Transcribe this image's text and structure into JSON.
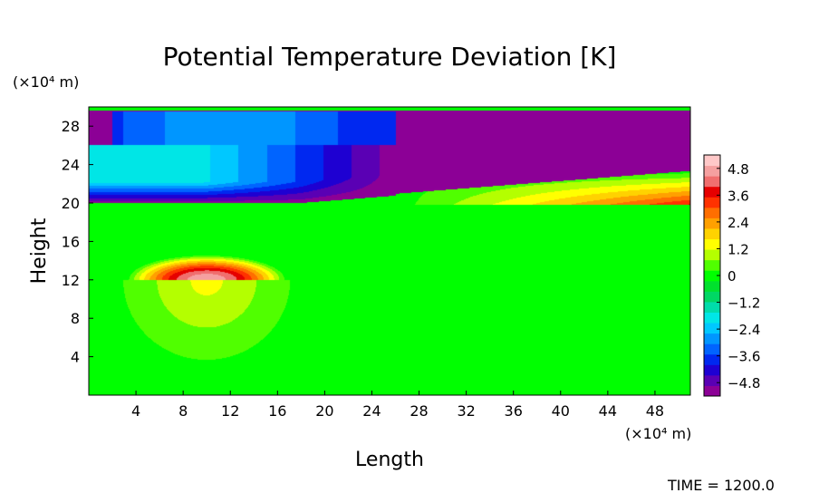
{
  "chart_data": {
    "type": "heatmap",
    "title": "Potential Temperature Deviation [K]",
    "xlabel": "Length",
    "ylabel": "Height",
    "x_unit": "(×10⁴ m)",
    "y_unit": "(×10⁴ m)",
    "xlim": [
      0,
      51
    ],
    "ylim": [
      0,
      30
    ],
    "x_ticks": [
      4,
      8,
      12,
      16,
      20,
      24,
      28,
      32,
      36,
      40,
      44,
      48
    ],
    "y_ticks": [
      4,
      8,
      12,
      16,
      20,
      24,
      28
    ],
    "colorbar": {
      "min": -5.4,
      "max": 5.4,
      "tick_values": [
        4.8,
        3.6,
        2.4,
        1.2,
        0,
        -1.2,
        -2.4,
        -3.6,
        -4.8
      ],
      "tick_labels": [
        "4.8",
        "3.6",
        "2.4",
        "1.2",
        "0",
        "−1.2",
        "−2.4",
        "−3.6",
        "−4.8"
      ]
    },
    "features": [
      {
        "name": "warm bubble",
        "center": [
          10,
          12
        ],
        "peak_value": 4.8
      },
      {
        "name": "cold upper layer",
        "y_range": [
          20,
          30
        ],
        "min_value": -4.8
      },
      {
        "name": "warm wedge",
        "x_range": [
          40,
          51
        ],
        "y_range": [
          20,
          23
        ],
        "peak_value": 3.6
      }
    ],
    "grid": false,
    "legend": "colorbar-right"
  },
  "annotation": {
    "time_label": "TIME =  1200.0"
  }
}
